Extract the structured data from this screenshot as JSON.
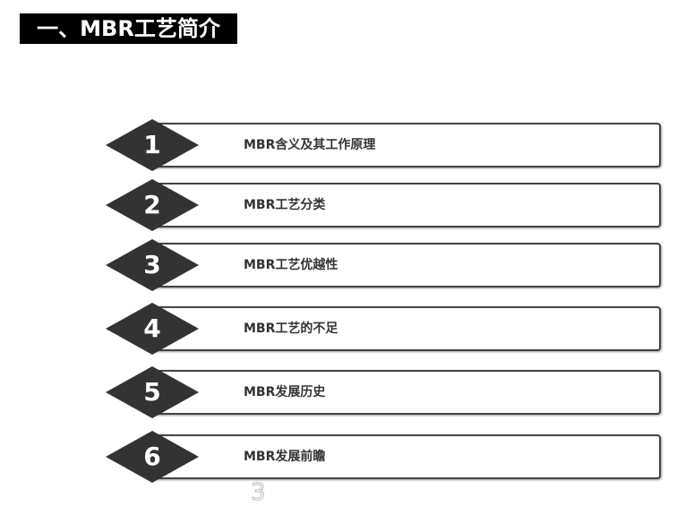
{
  "title": "一、MBR工艺简介",
  "items": [
    {
      "number": "1",
      "label": "MBR含义及其工作原理"
    },
    {
      "number": "2",
      "label": "MBR工艺分类"
    },
    {
      "number": "3",
      "label": "MBR工艺优越性"
    },
    {
      "number": "4",
      "label": "MBR工艺的不足"
    },
    {
      "number": "5",
      "label": "MBR发展历史"
    },
    {
      "number": "6",
      "label": "MBR发展前瞻"
    }
  ],
  "page_number": "3",
  "colors": {
    "diamond": "#333333",
    "title_bg": "#000000"
  }
}
